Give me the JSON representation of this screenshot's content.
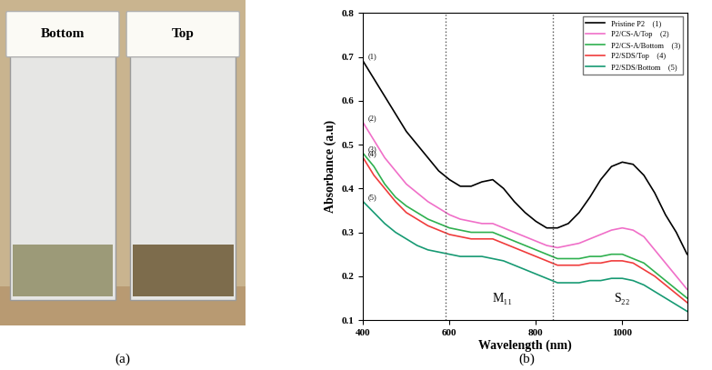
{
  "photo": {
    "vials": [
      "Bottom",
      "Top"
    ],
    "caption": "(a)"
  },
  "chart_data": {
    "type": "line",
    "caption": "(b)",
    "x_label": "Wavelength (nm)",
    "y_label": "Absorbance (a.u)",
    "x": [
      400,
      425,
      450,
      475,
      500,
      525,
      550,
      575,
      600,
      625,
      650,
      675,
      700,
      725,
      750,
      775,
      800,
      825,
      850,
      875,
      900,
      925,
      950,
      975,
      1000,
      1025,
      1050,
      1075,
      1100,
      1125,
      1150
    ],
    "series": [
      {
        "name": "Pristine P2",
        "tag": "(1)",
        "color": "#000000",
        "values": [
          0.69,
          0.65,
          0.61,
          0.57,
          0.53,
          0.5,
          0.47,
          0.44,
          0.42,
          0.405,
          0.405,
          0.415,
          0.42,
          0.4,
          0.37,
          0.345,
          0.325,
          0.31,
          0.31,
          0.32,
          0.345,
          0.38,
          0.42,
          0.45,
          0.46,
          0.455,
          0.43,
          0.39,
          0.34,
          0.3,
          0.25
        ]
      },
      {
        "name": "P2/CS-A/Top",
        "tag": "(2)",
        "color": "#f06fc8",
        "values": [
          0.55,
          0.51,
          0.47,
          0.44,
          0.41,
          0.39,
          0.37,
          0.355,
          0.34,
          0.33,
          0.325,
          0.32,
          0.32,
          0.31,
          0.3,
          0.29,
          0.28,
          0.27,
          0.265,
          0.27,
          0.275,
          0.285,
          0.295,
          0.305,
          0.31,
          0.305,
          0.29,
          0.26,
          0.23,
          0.2,
          0.17
        ]
      },
      {
        "name": "P2/CS-A/Bottom",
        "tag": "(3)",
        "color": "#2fb04f",
        "values": [
          0.48,
          0.45,
          0.41,
          0.38,
          0.36,
          0.345,
          0.33,
          0.32,
          0.31,
          0.305,
          0.3,
          0.3,
          0.3,
          0.29,
          0.28,
          0.27,
          0.26,
          0.25,
          0.24,
          0.24,
          0.24,
          0.245,
          0.245,
          0.25,
          0.25,
          0.24,
          0.23,
          0.21,
          0.19,
          0.17,
          0.15
        ]
      },
      {
        "name": "P2/SDS/Top",
        "tag": "(4)",
        "color": "#f03c3c",
        "values": [
          0.47,
          0.43,
          0.4,
          0.37,
          0.345,
          0.33,
          0.315,
          0.305,
          0.295,
          0.29,
          0.285,
          0.285,
          0.285,
          0.275,
          0.265,
          0.255,
          0.245,
          0.235,
          0.225,
          0.225,
          0.225,
          0.23,
          0.23,
          0.235,
          0.235,
          0.23,
          0.215,
          0.2,
          0.18,
          0.16,
          0.14
        ]
      },
      {
        "name": "P2/SDS/Bottom",
        "tag": "(5)",
        "color": "#179a73",
        "values": [
          0.37,
          0.345,
          0.32,
          0.3,
          0.285,
          0.27,
          0.26,
          0.255,
          0.25,
          0.245,
          0.245,
          0.245,
          0.24,
          0.235,
          0.225,
          0.215,
          0.205,
          0.195,
          0.185,
          0.185,
          0.185,
          0.19,
          0.19,
          0.195,
          0.195,
          0.19,
          0.18,
          0.165,
          0.15,
          0.135,
          0.12
        ]
      }
    ],
    "vlines": [
      590,
      840
    ],
    "annotations": [
      "M₁₁",
      "S₂₂"
    ],
    "xlim": [
      400,
      1150
    ],
    "xticks": [
      400,
      600,
      800,
      1000
    ],
    "ylim": [
      0.1,
      0.8
    ],
    "yticks": [
      0.1,
      0.2,
      0.3,
      0.4,
      0.5,
      0.6,
      0.7,
      0.8
    ],
    "legend": "upper right",
    "grid": false
  }
}
